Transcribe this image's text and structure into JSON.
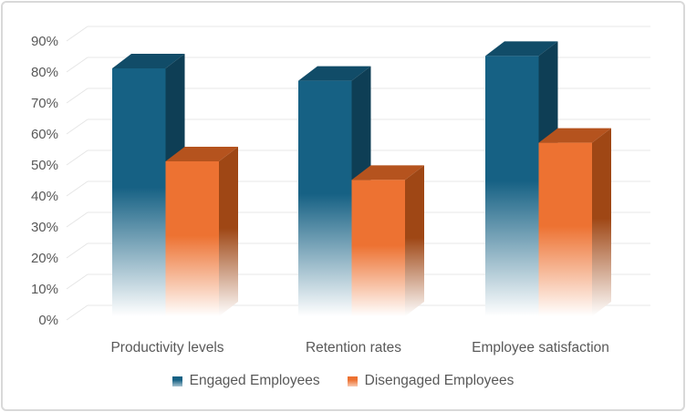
{
  "chart_data": {
    "type": "bar",
    "variant": "3d_clustered_column",
    "title": "",
    "categories": [
      "Productivity levels",
      "Retention rates",
      "Employee satisfaction"
    ],
    "series": [
      {
        "name": "Engaged Employees",
        "values": [
          80,
          76,
          84
        ],
        "color": "#166184",
        "color_top": "#114C68",
        "color_side": "#0E3E55"
      },
      {
        "name": "Disengaged Employees",
        "values": [
          50,
          44,
          56
        ],
        "color": "#ED7232",
        "color_top": "#B5531E",
        "color_side": "#9F4715"
      }
    ],
    "y_axis": {
      "min": 0,
      "max": 90,
      "step": 10,
      "format": "percent",
      "tick_labels": [
        "0%",
        "10%",
        "20%",
        "30%",
        "40%",
        "50%",
        "60%",
        "70%",
        "80%",
        "90%"
      ]
    },
    "x_axis": {
      "labels": [
        "Productivity levels",
        "Retention rates",
        "Employee satisfaction"
      ]
    },
    "grid": true,
    "legend": {
      "position": "bottom",
      "items": [
        "Engaged Employees",
        "Disengaged Employees"
      ]
    }
  },
  "colors": {
    "text": "#595959",
    "gridline": "#EFEFEF",
    "tick": "#E5E5E5",
    "border": "#D9D9D9",
    "background": "#FFFFFF"
  }
}
